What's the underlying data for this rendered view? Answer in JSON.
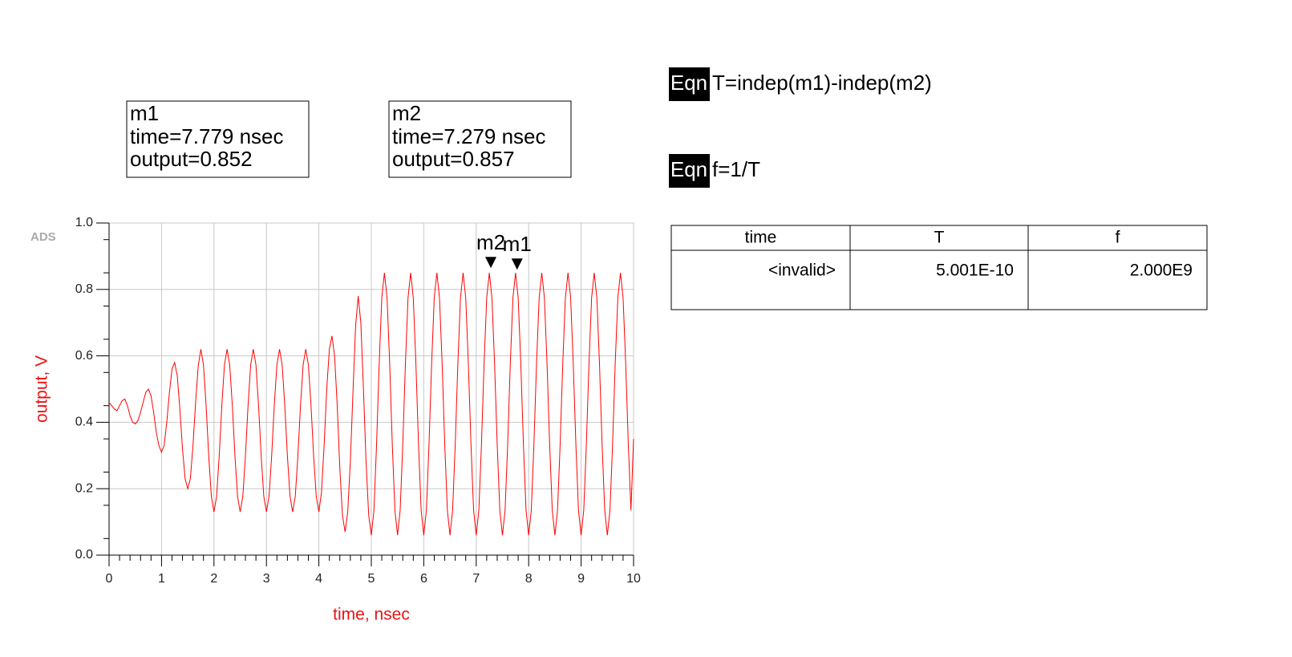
{
  "chart_data": {
    "type": "line",
    "watermark": "ADS",
    "x_label": "time, nsec",
    "y_label": "output, V",
    "color": "#ff0000",
    "grid": true,
    "xlim": [
      0,
      10
    ],
    "xticks": [
      0,
      1,
      2,
      3,
      4,
      5,
      6,
      7,
      8,
      9,
      10
    ],
    "ylim": [
      0,
      1
    ],
    "yticks": [
      {
        "value": 0,
        "label": "0.0"
      },
      0.2,
      0.4,
      0.6,
      0.8,
      {
        "value": 1,
        "label": "1.0"
      }
    ],
    "x": [
      0,
      0.05,
      0.1,
      0.15,
      0.2,
      0.25,
      0.3,
      0.35,
      0.4,
      0.45,
      0.5,
      0.55,
      0.6,
      0.65,
      0.7,
      0.75,
      0.8,
      0.85,
      0.9,
      0.95,
      1,
      1.05,
      1.1,
      1.15,
      1.2,
      1.25,
      1.3,
      1.35,
      1.4,
      1.45,
      1.5,
      1.55,
      1.6,
      1.65,
      1.7,
      1.75,
      1.8,
      1.85,
      1.9,
      1.95,
      2,
      2.05,
      2.1,
      2.15,
      2.2,
      2.25,
      2.3,
      2.35,
      2.4,
      2.45,
      2.5,
      2.55,
      2.6,
      2.65,
      2.7,
      2.75,
      2.8,
      2.85,
      2.9,
      2.95,
      3,
      3.05,
      3.1,
      3.15,
      3.2,
      3.25,
      3.3,
      3.35,
      3.4,
      3.45,
      3.5,
      3.55,
      3.6,
      3.65,
      3.7,
      3.75,
      3.8,
      3.85,
      3.9,
      3.95,
      4,
      4.05,
      4.1,
      4.15,
      4.2,
      4.25,
      4.3,
      4.35,
      4.4,
      4.45,
      4.5,
      4.55,
      4.6,
      4.65,
      4.7,
      4.75,
      4.8,
      4.85,
      4.9,
      4.95,
      5,
      5.05,
      5.1,
      5.15,
      5.2,
      5.25,
      5.3,
      5.35,
      5.4,
      5.45,
      5.5,
      5.55,
      5.6,
      5.65,
      5.7,
      5.75,
      5.8,
      5.85,
      5.9,
      5.95,
      6,
      6.05,
      6.1,
      6.15,
      6.2,
      6.25,
      6.3,
      6.35,
      6.4,
      6.45,
      6.5,
      6.55,
      6.6,
      6.65,
      6.7,
      6.75,
      6.8,
      6.85,
      6.9,
      6.95,
      7,
      7.05,
      7.1,
      7.15,
      7.2,
      7.25,
      7.3,
      7.35,
      7.4,
      7.45,
      7.5,
      7.55,
      7.6,
      7.65,
      7.7,
      7.75,
      7.8,
      7.85,
      7.9,
      7.95,
      8,
      8.05,
      8.1,
      8.15,
      8.2,
      8.25,
      8.3,
      8.35,
      8.4,
      8.45,
      8.5,
      8.55,
      8.6,
      8.65,
      8.7,
      8.75,
      8.8,
      8.85,
      8.9,
      8.95,
      9,
      9.05,
      9.1,
      9.15,
      9.2,
      9.25,
      9.3,
      9.35,
      9.4,
      9.45,
      9.5,
      9.55,
      9.6,
      9.65,
      9.7,
      9.75,
      9.8,
      9.85,
      9.9,
      9.95,
      10
    ],
    "values": [
      0.46,
      0.45,
      0.44,
      0.435,
      0.45,
      0.465,
      0.47,
      0.45,
      0.42,
      0.4,
      0.395,
      0.405,
      0.43,
      0.46,
      0.49,
      0.5,
      0.48,
      0.43,
      0.37,
      0.33,
      0.31,
      0.33,
      0.4,
      0.49,
      0.56,
      0.58,
      0.54,
      0.44,
      0.32,
      0.23,
      0.2,
      0.23,
      0.33,
      0.46,
      0.57,
      0.62,
      0.573,
      0.451,
      0.299,
      0.177,
      0.13,
      0.177,
      0.299,
      0.451,
      0.573,
      0.62,
      0.573,
      0.451,
      0.299,
      0.177,
      0.13,
      0.177,
      0.299,
      0.451,
      0.573,
      0.62,
      0.573,
      0.451,
      0.299,
      0.177,
      0.13,
      0.177,
      0.299,
      0.451,
      0.573,
      0.62,
      0.573,
      0.451,
      0.299,
      0.177,
      0.13,
      0.177,
      0.299,
      0.451,
      0.573,
      0.62,
      0.573,
      0.451,
      0.299,
      0.177,
      0.13,
      0.19,
      0.33,
      0.5,
      0.62,
      0.66,
      0.6,
      0.45,
      0.26,
      0.12,
      0.07,
      0.13,
      0.28,
      0.49,
      0.69,
      0.78,
      0.7,
      0.5,
      0.28,
      0.12,
      0.06,
      0.135,
      0.333,
      0.577,
      0.775,
      0.85,
      0.775,
      0.577,
      0.333,
      0.135,
      0.06,
      0.135,
      0.333,
      0.577,
      0.775,
      0.85,
      0.775,
      0.577,
      0.333,
      0.135,
      0.06,
      0.135,
      0.333,
      0.577,
      0.775,
      0.85,
      0.775,
      0.577,
      0.333,
      0.135,
      0.06,
      0.135,
      0.333,
      0.577,
      0.775,
      0.85,
      0.775,
      0.577,
      0.333,
      0.135,
      0.06,
      0.135,
      0.333,
      0.577,
      0.775,
      0.85,
      0.775,
      0.577,
      0.333,
      0.135,
      0.06,
      0.135,
      0.333,
      0.577,
      0.775,
      0.85,
      0.775,
      0.577,
      0.333,
      0.135,
      0.06,
      0.135,
      0.333,
      0.577,
      0.775,
      0.85,
      0.775,
      0.577,
      0.333,
      0.135,
      0.06,
      0.135,
      0.333,
      0.577,
      0.775,
      0.85,
      0.775,
      0.577,
      0.333,
      0.135,
      0.06,
      0.135,
      0.333,
      0.577,
      0.775,
      0.85,
      0.775,
      0.577,
      0.333,
      0.135,
      0.06,
      0.135,
      0.333,
      0.577,
      0.775,
      0.85,
      0.775,
      0.577,
      0.333,
      0.135,
      0.35
    ],
    "markers": [
      {
        "name": "m1",
        "x": 7.779,
        "y": 0.852,
        "x_label": "time=7.779 nsec",
        "y_label": "output=0.852"
      },
      {
        "name": "m2",
        "x": 7.279,
        "y": 0.857,
        "x_label": "time=7.279 nsec",
        "y_label": "output=0.857"
      }
    ]
  },
  "equations": [
    {
      "tag": "Eqn",
      "text": "T=indep(m1)-indep(m2)"
    },
    {
      "tag": "Eqn",
      "text": "f=1/T"
    }
  ],
  "table": {
    "header": [
      "time",
      "T",
      "f"
    ],
    "rows": [
      [
        "<invalid>",
        "5.001E-10",
        "2.000E9"
      ]
    ]
  }
}
